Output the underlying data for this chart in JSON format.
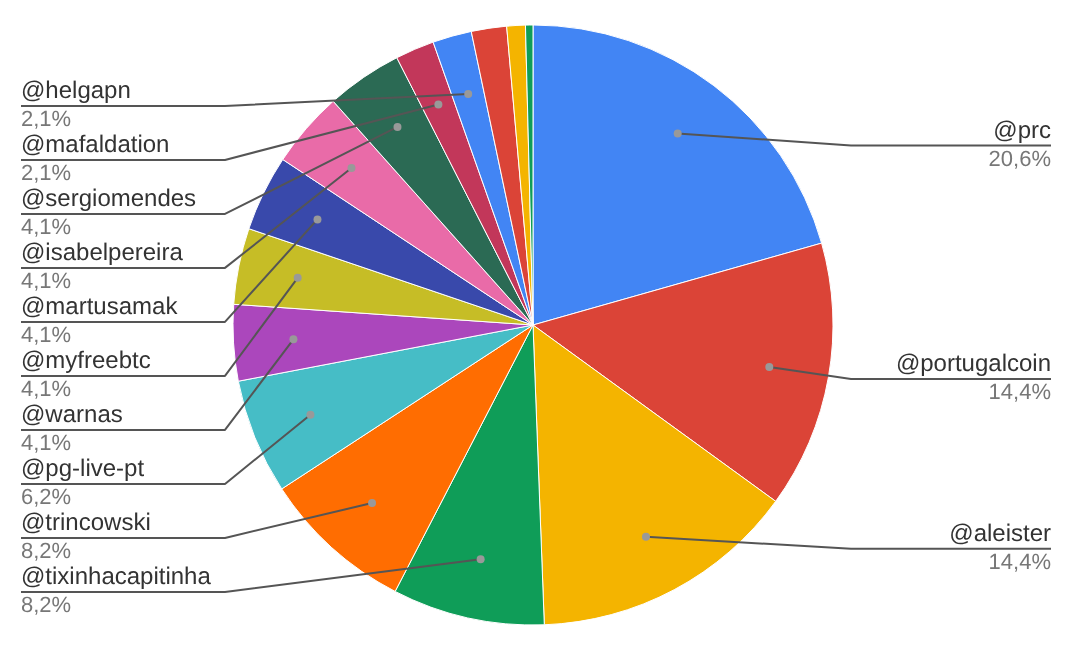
{
  "chart_data": {
    "type": "pie",
    "categories": [
      "@prc",
      "@portugalcoin",
      "@aleister",
      "@tixinhacapitinha",
      "@trincowski",
      "@pg-live-pt",
      "@warnas",
      "@myfreebtc",
      "@martusamak",
      "@isabelpereira",
      "@sergiomendes",
      "@mafaldation",
      "@helgapn",
      null,
      null,
      null
    ],
    "values": [
      20.6,
      14.4,
      14.4,
      8.2,
      8.2,
      6.2,
      4.1,
      4.1,
      4.1,
      4.1,
      4.1,
      2.1,
      2.1,
      1.9,
      1.0,
      0.4
    ],
    "value_labels": [
      "20,6%",
      "14,4%",
      "14,4%",
      "8,2%",
      "8,2%",
      "6,2%",
      "4,1%",
      "4,1%",
      "4,1%",
      "4,1%",
      "4,1%",
      "2,1%",
      "2,1%",
      null,
      null,
      null
    ],
    "colors": [
      "#4285f4",
      "#db4437",
      "#f4b400",
      "#0f9d58",
      "#ff6d01",
      "#46bdc6",
      "#ab47bc",
      "#c6bd26",
      "#3949ab",
      "#e96ba8",
      "#2b6a54",
      "#c2375a",
      "#4285f4",
      "#db4437",
      "#f4b400",
      "#0f9d58"
    ]
  }
}
